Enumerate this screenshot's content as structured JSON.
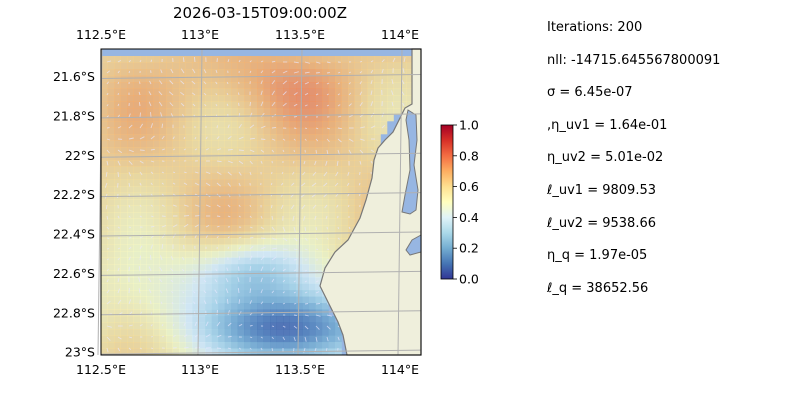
{
  "chart_data": {
    "type": "heatmap",
    "title": "2026-03-15T09:00:00Z",
    "map_extent": {
      "lon": [
        112.5,
        114.2
      ],
      "lat": [
        -23.0,
        -21.5
      ]
    },
    "x_ticks": [
      "112.5°E",
      "113°E",
      "113.5°E",
      "114°E"
    ],
    "x_tick_values": [
      112.5,
      113.0,
      113.5,
      114.0
    ],
    "y_ticks": [
      "21.6°S",
      "21.8°S",
      "22°S",
      "22.2°S",
      "22.4°S",
      "22.6°S",
      "22.8°S",
      "23°S"
    ],
    "y_tick_values": [
      -21.6,
      -21.8,
      -22.0,
      -22.2,
      -22.4,
      -22.6,
      -22.8,
      -23.0
    ],
    "grid": true,
    "colormap": "RdYlBu_r",
    "colorbar": {
      "range": [
        0.0,
        1.0
      ],
      "ticks": [
        "0.0",
        "0.2",
        "0.4",
        "0.6",
        "0.8",
        "1.0"
      ],
      "tick_values": [
        0.0,
        0.2,
        0.4,
        0.6,
        0.8,
        1.0
      ]
    },
    "colors": {
      "land": "#efefdc",
      "ocean": "#97b6e2",
      "coastline": "#777777",
      "grid": "#b0b0b0",
      "arrows": "#e8e8ff"
    }
  },
  "parameters": [
    "Iterations: 200",
    "nll: -14715.645567800091",
    "σ = 6.45e-07",
    ",η_uv1 = 1.64e-01",
    "η_uv2 = 5.01e-02",
    "ℓ_uv1 = 9809.53",
    "ℓ_uv2 = 9538.66",
    "η_q = 1.97e-05",
    "ℓ_q = 38652.56"
  ]
}
